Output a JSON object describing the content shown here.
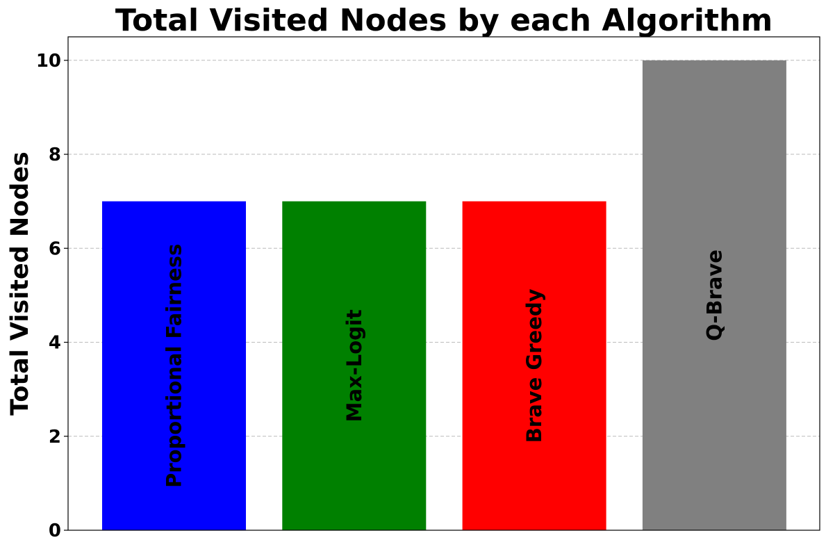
{
  "chart_data": {
    "type": "bar",
    "title": "Total Visited Nodes by each Algorithm",
    "xlabel": "",
    "ylabel": "Total Visited Nodes",
    "categories": [
      "Proportional Fairness",
      "Max-Logit",
      "Brave Greedy",
      "Q-Brave"
    ],
    "values": [
      7,
      7,
      7,
      10
    ],
    "colors": [
      "#0000ff",
      "#008000",
      "#ff0000",
      "#808080"
    ],
    "ylim": [
      0,
      10.5
    ],
    "yticks": [
      0,
      2,
      4,
      6,
      8,
      10
    ],
    "grid": true,
    "legend": "none"
  }
}
